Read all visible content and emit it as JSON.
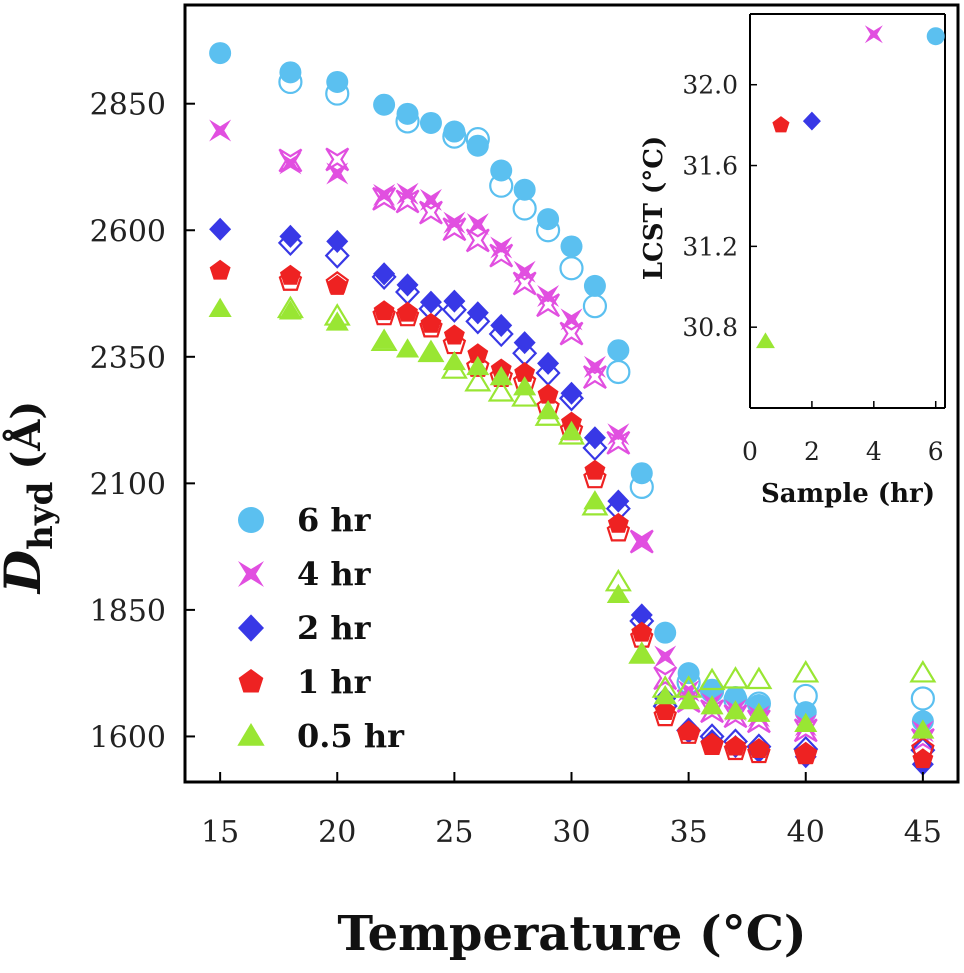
{
  "chart_data": [
    {
      "type": "scatter",
      "xlabel": "Temperature",
      "xlabel_unit": "(°C)",
      "ylabel": "D",
      "ylabel_sub": "hyd",
      "ylabel_unit": "(Å)",
      "xlim": [
        13.5,
        46.5
      ],
      "ylim": [
        1510,
        3045
      ],
      "xticks": [
        15,
        20,
        25,
        30,
        35,
        40,
        45
      ],
      "yticks": [
        1600,
        1850,
        2100,
        2350,
        2600,
        2850
      ],
      "legend_position": "bottom-left",
      "series": [
        {
          "name": "6 hr",
          "color": "#5bc0f0",
          "marker": "circle",
          "filled": [
            [
              15,
              2950
            ],
            [
              18,
              2912
            ],
            [
              20,
              2893
            ],
            [
              22,
              2848
            ],
            [
              23,
              2830
            ],
            [
              24,
              2812
            ],
            [
              25,
              2795
            ],
            [
              26,
              2767
            ],
            [
              27,
              2718
            ],
            [
              28,
              2680
            ],
            [
              29,
              2622
            ],
            [
              30,
              2568
            ],
            [
              31,
              2490
            ],
            [
              32,
              2363
            ],
            [
              33,
              2120
            ],
            [
              34,
              1805
            ],
            [
              35,
              1725
            ],
            [
              36,
              1690
            ],
            [
              37,
              1678
            ],
            [
              38,
              1662
            ],
            [
              40,
              1648
            ],
            [
              45,
              1630
            ]
          ],
          "open": [
            [
              18,
              2893
            ],
            [
              20,
              2870
            ],
            [
              23,
              2815
            ],
            [
              25,
              2785
            ],
            [
              26,
              2780
            ],
            [
              27,
              2688
            ],
            [
              28,
              2643
            ],
            [
              29,
              2600
            ],
            [
              30,
              2525
            ],
            [
              31,
              2450
            ],
            [
              32,
              2320
            ],
            [
              33,
              2093
            ],
            [
              35,
              1707
            ],
            [
              36,
              1690
            ],
            [
              37,
              1672
            ],
            [
              38,
              1665
            ],
            [
              40,
              1680
            ],
            [
              45,
              1675
            ]
          ]
        },
        {
          "name": "4 hr",
          "color": "#e14fe0",
          "marker": "star",
          "filled": [
            [
              15,
              2797
            ],
            [
              18,
              2732
            ],
            [
              20,
              2712
            ],
            [
              22,
              2670
            ],
            [
              23,
              2672
            ],
            [
              24,
              2660
            ],
            [
              25,
              2615
            ],
            [
              26,
              2612
            ],
            [
              27,
              2566
            ],
            [
              28,
              2518
            ],
            [
              29,
              2470
            ],
            [
              30,
              2424
            ],
            [
              31,
              2330
            ],
            [
              32,
              2197
            ],
            [
              33,
              1987
            ],
            [
              34,
              1758
            ],
            [
              35,
              1690
            ],
            [
              36,
              1665
            ],
            [
              37,
              1652
            ],
            [
              38,
              1640
            ],
            [
              40,
              1622
            ],
            [
              45,
              1610
            ]
          ],
          "open": [
            [
              18,
              2738
            ],
            [
              20,
              2740
            ],
            [
              22,
              2662
            ],
            [
              23,
              2657
            ],
            [
              24,
              2635
            ],
            [
              25,
              2602
            ],
            [
              26,
              2580
            ],
            [
              27,
              2550
            ],
            [
              28,
              2495
            ],
            [
              29,
              2452
            ],
            [
              30,
              2396
            ],
            [
              31,
              2310
            ],
            [
              32,
              2180
            ],
            [
              33,
              1985
            ],
            [
              34,
              1715
            ],
            [
              35,
              1670
            ],
            [
              36,
              1650
            ],
            [
              37,
              1640
            ],
            [
              38,
              1630
            ],
            [
              40,
              1612
            ],
            [
              45,
              1593
            ]
          ]
        },
        {
          "name": "2 hr",
          "color": "#3838e6",
          "marker": "diamond",
          "filled": [
            [
              15,
              2602
            ],
            [
              18,
              2588
            ],
            [
              20,
              2578
            ],
            [
              22,
              2514
            ],
            [
              23,
              2492
            ],
            [
              24,
              2458
            ],
            [
              25,
              2460
            ],
            [
              26,
              2437
            ],
            [
              27,
              2412
            ],
            [
              28,
              2378
            ],
            [
              29,
              2337
            ],
            [
              30,
              2278
            ],
            [
              31,
              2190
            ],
            [
              32,
              2065
            ],
            [
              33,
              1840
            ],
            [
              34,
              1675
            ],
            [
              35,
              1610
            ],
            [
              36,
              1592
            ],
            [
              37,
              1580
            ],
            [
              38,
              1570
            ],
            [
              40,
              1560
            ],
            [
              45,
              1545
            ]
          ],
          "open": [
            [
              18,
              2575
            ],
            [
              20,
              2550
            ],
            [
              22,
              2508
            ],
            [
              23,
              2478
            ],
            [
              24,
              2445
            ],
            [
              25,
              2443
            ],
            [
              26,
              2420
            ],
            [
              27,
              2395
            ],
            [
              28,
              2357
            ],
            [
              29,
              2318
            ],
            [
              30,
              2268
            ],
            [
              31,
              2170
            ],
            [
              32,
              2050
            ],
            [
              33,
              1828
            ],
            [
              34,
              1660
            ],
            [
              35,
              1612
            ],
            [
              36,
              1600
            ],
            [
              37,
              1590
            ],
            [
              38,
              1580
            ],
            [
              40,
              1575
            ],
            [
              45,
              1573
            ]
          ]
        },
        {
          "name": "1 hr",
          "color": "#ee2222",
          "marker": "pentagon",
          "filled": [
            [
              15,
              2520
            ],
            [
              18,
              2510
            ],
            [
              20,
              2490
            ],
            [
              22,
              2440
            ],
            [
              23,
              2437
            ],
            [
              24,
              2415
            ],
            [
              25,
              2392
            ],
            [
              26,
              2355
            ],
            [
              27,
              2325
            ],
            [
              28,
              2318
            ],
            [
              29,
              2275
            ],
            [
              30,
              2220
            ],
            [
              31,
              2125
            ],
            [
              32,
              2020
            ],
            [
              33,
              1805
            ],
            [
              34,
              1650
            ],
            [
              35,
              1610
            ],
            [
              36,
              1585
            ],
            [
              37,
              1580
            ],
            [
              38,
              1575
            ],
            [
              40,
              1563
            ],
            [
              45,
              1555
            ]
          ],
          "open": [
            [
              18,
              2500
            ],
            [
              20,
              2495
            ],
            [
              22,
              2432
            ],
            [
              23,
              2430
            ],
            [
              24,
              2408
            ],
            [
              25,
              2375
            ],
            [
              26,
              2330
            ],
            [
              27,
              2310
            ],
            [
              28,
              2300
            ],
            [
              29,
              2250
            ],
            [
              30,
              2205
            ],
            [
              31,
              2110
            ],
            [
              32,
              2005
            ],
            [
              33,
              1795
            ],
            [
              34,
              1640
            ],
            [
              35,
              1605
            ],
            [
              36,
              1583
            ],
            [
              37,
              1573
            ],
            [
              38,
              1567
            ],
            [
              40,
              1565
            ],
            [
              45,
              1575
            ]
          ]
        },
        {
          "name": "0.5 hr",
          "color": "#99e633",
          "marker": "triangle",
          "filled": [
            [
              15,
              2445
            ],
            [
              18,
              2440
            ],
            [
              20,
              2418
            ],
            [
              22,
              2382
            ],
            [
              23,
              2365
            ],
            [
              24,
              2360
            ],
            [
              25,
              2340
            ],
            [
              26,
              2330
            ],
            [
              27,
              2310
            ],
            [
              28,
              2290
            ],
            [
              29,
              2243
            ],
            [
              30,
              2202
            ],
            [
              31,
              2065
            ],
            [
              32,
              1880
            ],
            [
              33,
              1762
            ],
            [
              34,
              1680
            ],
            [
              35,
              1670
            ],
            [
              36,
              1660
            ],
            [
              37,
              1650
            ],
            [
              38,
              1645
            ],
            [
              40,
              1625
            ],
            [
              45,
              1612
            ]
          ],
          "open": [
            [
              18,
              2445
            ],
            [
              20,
              2430
            ],
            [
              22,
              2380
            ],
            [
              24,
              2358
            ],
            [
              25,
              2325
            ],
            [
              26,
              2300
            ],
            [
              27,
              2280
            ],
            [
              28,
              2270
            ],
            [
              29,
              2232
            ],
            [
              30,
              2195
            ],
            [
              31,
              2055
            ],
            [
              32,
              1905
            ],
            [
              33,
              1762
            ],
            [
              34,
              1695
            ],
            [
              35,
              1695
            ],
            [
              36,
              1710
            ],
            [
              37,
              1713
            ],
            [
              38,
              1712
            ],
            [
              40,
              1725
            ],
            [
              45,
              1725
            ]
          ]
        }
      ]
    },
    {
      "type": "scatter",
      "inset": true,
      "xlabel": "Sample (hr)",
      "ylabel": "LCST (°C)",
      "xlim": [
        0,
        6.3
      ],
      "ylim": [
        30.4,
        32.35
      ],
      "xticks": [
        0,
        2,
        4,
        6
      ],
      "yticks": [
        30.8,
        31.2,
        31.6,
        32.0
      ],
      "ytick_labels": [
        "30.8",
        "31.2",
        "31.6",
        "32.0"
      ],
      "points": [
        {
          "x": 0.5,
          "y": 30.73,
          "series": "0.5 hr"
        },
        {
          "x": 1,
          "y": 31.8,
          "series": "1 hr"
        },
        {
          "x": 2,
          "y": 31.82,
          "series": "2 hr"
        },
        {
          "x": 4,
          "y": 32.25,
          "series": "4 hr"
        },
        {
          "x": 6,
          "y": 32.24,
          "series": "6 hr"
        }
      ]
    }
  ]
}
